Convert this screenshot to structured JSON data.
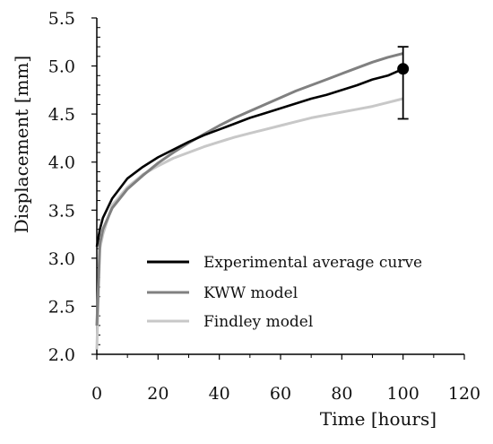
{
  "chart_data": {
    "type": "line",
    "xlabel": "Time [hours]",
    "ylabel": "Displacement [mm]",
    "xlim": [
      0,
      120
    ],
    "ylim": [
      2.0,
      5.5
    ],
    "x_ticks": [
      "0",
      "20",
      "40",
      "60",
      "80",
      "100",
      "120"
    ],
    "y_ticks": [
      "2.0",
      "2.5",
      "3.0",
      "3.5",
      "4.0",
      "4.5",
      "5.0",
      "5.5"
    ],
    "grid": false,
    "legend_position": "bottom-center",
    "series": [
      {
        "name": "Experimental average curve",
        "color": "#000000",
        "x": [
          0,
          1,
          2,
          5,
          10,
          15,
          20,
          25,
          30,
          35,
          40,
          45,
          50,
          55,
          60,
          65,
          70,
          75,
          80,
          85,
          90,
          95,
          100
        ],
        "y": [
          3.12,
          3.3,
          3.42,
          3.62,
          3.83,
          3.95,
          4.05,
          4.13,
          4.21,
          4.28,
          4.34,
          4.4,
          4.46,
          4.51,
          4.56,
          4.61,
          4.66,
          4.7,
          4.75,
          4.8,
          4.86,
          4.9,
          4.97
        ]
      },
      {
        "name": "KWW model",
        "color": "#808080",
        "x": [
          0,
          1,
          2,
          5,
          10,
          15,
          20,
          25,
          30,
          35,
          40,
          45,
          50,
          55,
          60,
          65,
          70,
          75,
          80,
          85,
          90,
          95,
          100
        ],
        "y": [
          2.3,
          3.15,
          3.3,
          3.52,
          3.72,
          3.86,
          3.99,
          4.1,
          4.2,
          4.29,
          4.38,
          4.46,
          4.53,
          4.6,
          4.67,
          4.74,
          4.8,
          4.86,
          4.92,
          4.98,
          5.04,
          5.09,
          5.13
        ]
      },
      {
        "name": "Findley model",
        "color": "#c8c8c8",
        "x": [
          0,
          1,
          2,
          5,
          10,
          15,
          20,
          25,
          30,
          35,
          40,
          45,
          50,
          55,
          60,
          65,
          70,
          75,
          80,
          85,
          90,
          95,
          100
        ],
        "y": [
          2.05,
          3.1,
          3.25,
          3.55,
          3.74,
          3.87,
          3.96,
          4.04,
          4.1,
          4.16,
          4.21,
          4.26,
          4.3,
          4.34,
          4.38,
          4.42,
          4.46,
          4.49,
          4.52,
          4.55,
          4.58,
          4.62,
          4.66
        ]
      }
    ],
    "error_bar": {
      "x": 100,
      "y": 4.97,
      "low": 4.45,
      "high": 5.2
    }
  }
}
